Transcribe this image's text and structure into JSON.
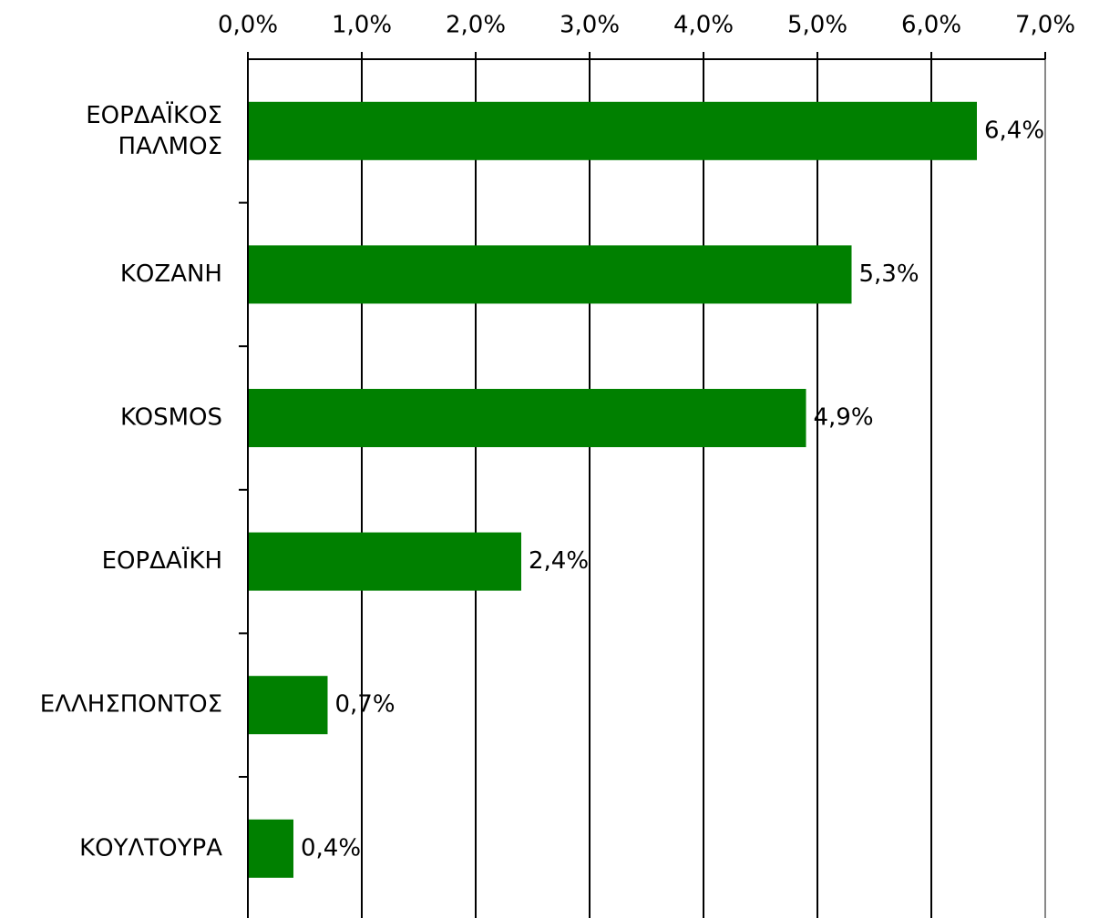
{
  "chart_data": {
    "type": "bar",
    "orientation": "horizontal",
    "categories": [
      "ΕΟΡΔΑΪΚΟΣ\nΠΑΛΜΟΣ",
      "ΚΟΖΑΝΗ",
      "KOSMOS",
      "ΕΟΡΔΑΪΚΗ",
      "ΕΛΛΗΣΠΟΝΤΟΣ",
      "ΚΟΥΛΤΟΥΡΑ"
    ],
    "values": [
      6.4,
      5.3,
      4.9,
      2.4,
      0.7,
      0.4
    ],
    "value_labels": [
      "6,4%",
      "5,3%",
      "4,9%",
      "2,4%",
      "0,7%",
      "0,4%"
    ],
    "color": "#008000",
    "xlim": [
      0,
      7
    ],
    "xticks": [
      {
        "value": 0,
        "label": "0,0%"
      },
      {
        "value": 1,
        "label": "1,0%"
      },
      {
        "value": 2,
        "label": "2,0%"
      },
      {
        "value": 3,
        "label": "3,0%"
      },
      {
        "value": 4,
        "label": "4,0%"
      },
      {
        "value": 5,
        "label": "5,0%"
      },
      {
        "value": 6,
        "label": "6,0%"
      },
      {
        "value": 7,
        "label": "7,0%"
      }
    ],
    "grid": true
  }
}
